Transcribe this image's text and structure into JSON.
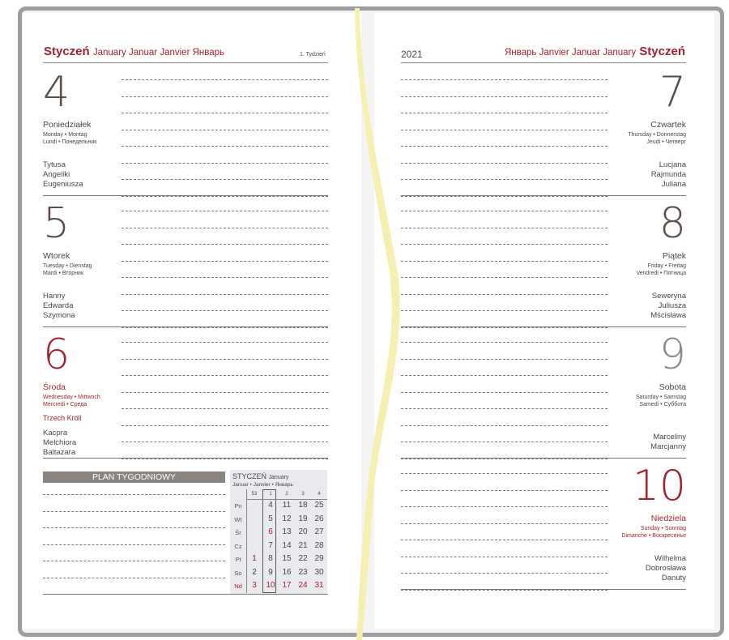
{
  "colors": {
    "red": "#a3212b",
    "dark": "#5a4f48",
    "saturday": "#8a8a8a"
  },
  "left_header": {
    "month": "Styczeń",
    "translations": "January Januar Janvier Январь",
    "week": "1. Tydzień"
  },
  "right_header": {
    "year": "2021",
    "translations": "Январь Janvier Januar January",
    "month": "Styczeń"
  },
  "left_days": [
    {
      "num": "4",
      "name": "Poniedziałek",
      "t1": "Monday • Montag",
      "t2": "Lundi • Понедельник",
      "holiday": "",
      "names": [
        "Tytusa",
        "Angeliki",
        "Eugeniusza"
      ],
      "style": "normal"
    },
    {
      "num": "5",
      "name": "Wtorek",
      "t1": "Tuesday • Dienstag",
      "t2": "Mardi • Вторник",
      "holiday": "",
      "names": [
        "Hanny",
        "Edwarda",
        "Szymona"
      ],
      "style": "normal"
    },
    {
      "num": "6",
      "name": "Środa",
      "t1": "Wednesday • Mittwoch",
      "t2": "Mercredi • Среда",
      "holiday": "Trzech Króli",
      "names": [
        "Kacpra",
        "Melchiora",
        "Baltazara"
      ],
      "style": "red"
    }
  ],
  "right_days": [
    {
      "num": "7",
      "name": "Czwartek",
      "t1": "Thursday • Donnerstag",
      "t2": "Jeudi • Четверг",
      "names": [
        "Lucjana",
        "Rajmunda",
        "Juliana"
      ],
      "style": "normal"
    },
    {
      "num": "8",
      "name": "Piątek",
      "t1": "Friday • Freitag",
      "t2": "Vendredi • Пятница",
      "names": [
        "Seweryna",
        "Juliusza",
        "Mścisława"
      ],
      "style": "normal"
    },
    {
      "num": "9",
      "name": "Sobota",
      "t1": "Saturday • Samstag",
      "t2": "Samedi • Суббота",
      "names": [
        "Marceliny",
        "Marcjanny"
      ],
      "style": "saturday"
    },
    {
      "num": "10",
      "name": "Niedziela",
      "t1": "Sunday • Sonntag",
      "t2": "Dimanche • Воскресенье",
      "names": [
        "Wilhelma",
        "Dobrosława",
        "Danuty"
      ],
      "style": "red"
    }
  ],
  "plan": {
    "title": "PLAN TYGODNIOWY"
  },
  "mini_calendar": {
    "month": "STYCZEŃ",
    "month_en": "January",
    "subtitle": "Januar • Janvier • Январь",
    "weeks": [
      "53",
      "1",
      "2",
      "3",
      "4"
    ],
    "current_week": "1",
    "rows": [
      {
        "day": "Pn",
        "cells": [
          "",
          "4",
          "11",
          "18",
          "25"
        ]
      },
      {
        "day": "Wt",
        "cells": [
          "",
          "5",
          "12",
          "19",
          "26"
        ]
      },
      {
        "day": "Śr",
        "cells": [
          "",
          "6",
          "13",
          "20",
          "27"
        ]
      },
      {
        "day": "Cz",
        "cells": [
          "",
          "7",
          "14",
          "21",
          "28"
        ]
      },
      {
        "day": "Pt",
        "cells": [
          "1",
          "8",
          "15",
          "22",
          "29"
        ]
      },
      {
        "day": "So",
        "cells": [
          "2",
          "9",
          "16",
          "23",
          "30"
        ]
      },
      {
        "day": "Nd",
        "cells": [
          "3",
          "10",
          "17",
          "24",
          "31"
        ]
      }
    ],
    "red_dates": [
      "1",
      "3",
      "6",
      "10",
      "17",
      "24",
      "31"
    ]
  }
}
